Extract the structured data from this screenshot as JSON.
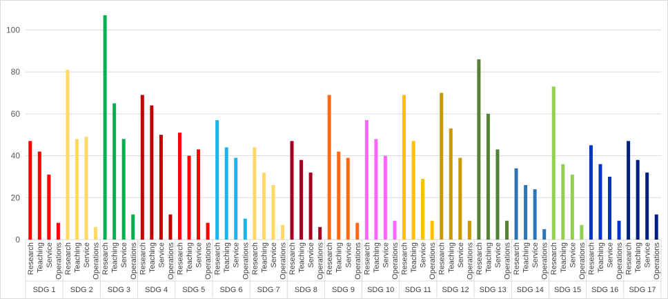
{
  "chart_data": {
    "type": "bar",
    "title": "",
    "xlabel": "",
    "ylabel": "",
    "ylim": [
      0,
      110
    ],
    "yticks": [
      0,
      20,
      40,
      60,
      80,
      100
    ],
    "grid": true,
    "legend": "none",
    "subcategories": [
      "Research",
      "Teaching",
      "Service",
      "Operations"
    ],
    "groups": [
      {
        "name": "SDG 1",
        "color": "#ff0000",
        "values": [
          47,
          42,
          31,
          8
        ]
      },
      {
        "name": "SDG 2",
        "color": "#ffd966",
        "values": [
          81,
          48,
          49,
          6
        ]
      },
      {
        "name": "SDG 3",
        "color": "#00b050",
        "values": [
          107,
          65,
          48,
          12
        ]
      },
      {
        "name": "SDG 4",
        "color": "#c00000",
        "values": [
          69,
          64,
          50,
          12
        ]
      },
      {
        "name": "SDG 5",
        "color": "#ff0000",
        "values": [
          51,
          40,
          43,
          8
        ]
      },
      {
        "name": "SDG 6",
        "color": "#1cb4ea",
        "values": [
          57,
          44,
          39,
          10
        ]
      },
      {
        "name": "SDG 7",
        "color": "#ffd966",
        "values": [
          44,
          32,
          26,
          7
        ]
      },
      {
        "name": "SDG 8",
        "color": "#a50021",
        "values": [
          47,
          38,
          32,
          6
        ]
      },
      {
        "name": "SDG 9",
        "color": "#ff6a13",
        "values": [
          69,
          42,
          39,
          8
        ]
      },
      {
        "name": "SDG 10",
        "color": "#ff66ff",
        "values": [
          57,
          48,
          40,
          9
        ]
      },
      {
        "name": "SDG 11",
        "color": "#ffc000",
        "values": [
          69,
          47,
          29,
          9
        ]
      },
      {
        "name": "SDG 12",
        "color": "#c99700",
        "values": [
          70,
          53,
          39,
          9
        ]
      },
      {
        "name": "SDG 13",
        "color": "#548235",
        "values": [
          86,
          60,
          43,
          9
        ]
      },
      {
        "name": "SDG 14",
        "color": "#2e75b6",
        "values": [
          34,
          26,
          24,
          5
        ]
      },
      {
        "name": "SDG 15",
        "color": "#92d050",
        "values": [
          73,
          36,
          31,
          7
        ]
      },
      {
        "name": "SDG 16",
        "color": "#0033cc",
        "values": [
          45,
          36,
          30,
          9
        ]
      },
      {
        "name": "SDG 17",
        "color": "#002080",
        "values": [
          47,
          38,
          32,
          12
        ]
      }
    ]
  }
}
